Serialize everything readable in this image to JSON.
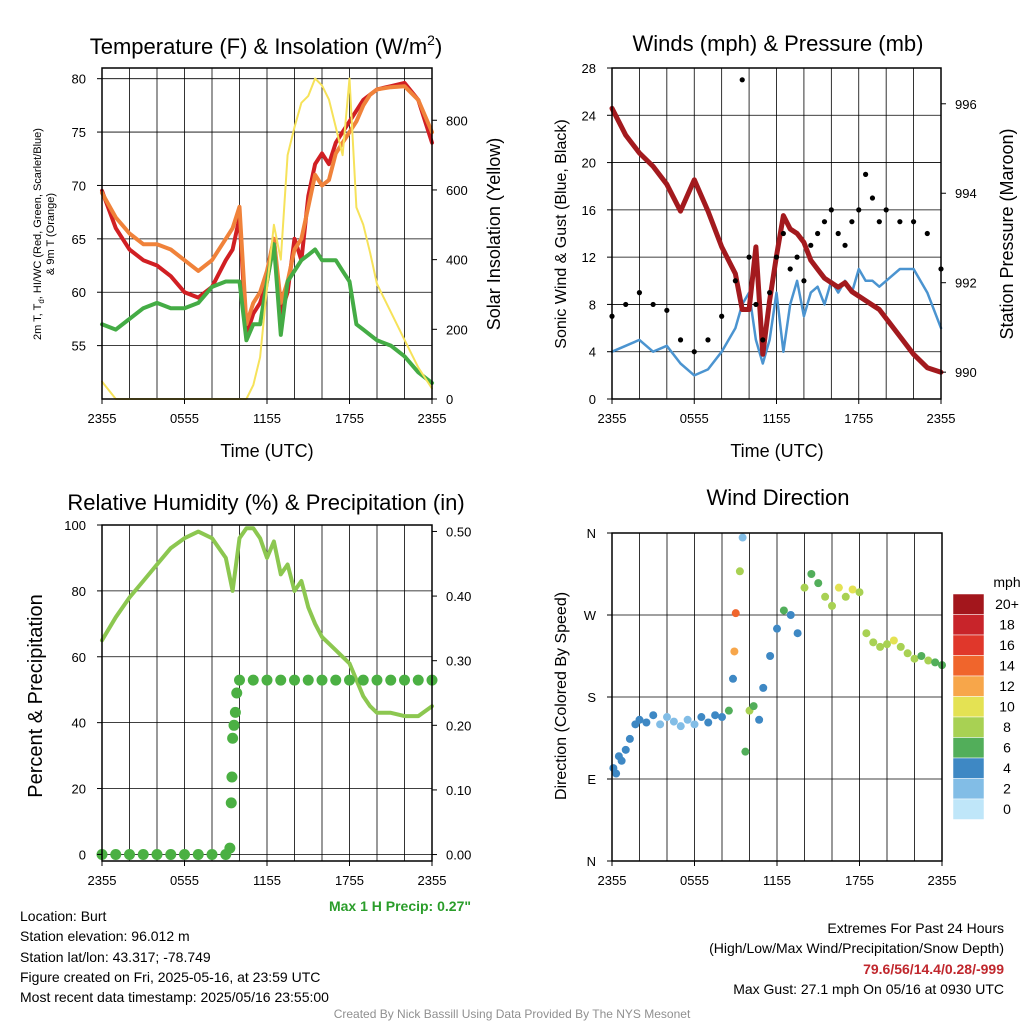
{
  "panels": {
    "temperature": {
      "title": "Temperature (F) & Insolation (W/m",
      "title_sup": "2",
      "title_close": ")",
      "ylabel_line1": "2m T, T",
      "ylabel_sub": "d",
      "ylabel_line1_rest": ", HI/WC (Red, Green, Scarlet/Blue)",
      "ylabel_line2": "& 9m T (Orange)",
      "y2label": "Solar Insolation (Yellow)",
      "xlabel": "Time (UTC)"
    },
    "winds": {
      "title": "Winds (mph) & Pressure (mb)",
      "ylabel": "Sonic Wind & Gust (Blue, Black)",
      "y2label": "Station Pressure (Maroon)",
      "xlabel": "Time (UTC)"
    },
    "humidity": {
      "title": "Relative Humidity (%) & Precipitation (in)",
      "ylabel": "Percent & Precipitation",
      "max_precip": "Max 1 H Precip: 0.27\""
    },
    "direction": {
      "title": "Wind Direction",
      "ylabel": "Direction (Colored By Speed)",
      "colorbar_unit": "mph",
      "colorbar_labels": [
        "20+",
        "18",
        "16",
        "14",
        "12",
        "10",
        "8",
        "6",
        "4",
        "2",
        "0"
      ],
      "colorbar_colors": [
        "#a3161c",
        "#c8242a",
        "#e0372b",
        "#f0652c",
        "#f7a64a",
        "#e4e253",
        "#a8d153",
        "#52ae5a",
        "#3e88c4",
        "#82bde6",
        "#bfe6f9"
      ]
    }
  },
  "colors": {
    "temp_red": "#d11f23",
    "dew_green": "#44ac45",
    "temp9m_orange": "#f0823a",
    "solar_yellow": "#f6e25a",
    "wind_blue": "#4b94d0",
    "gust_black": "#000000",
    "pressure_maroon": "#a31a1e",
    "rh_lightgreen": "#8cc750",
    "precip_green": "#4bb043"
  },
  "info_left": [
    "Location: Burt",
    "Station elevation: 96.012 m",
    "Station lat/lon: 43.317; -78.749",
    "Figure created on Fri, 2025-05-16, at 23:59 UTC",
    "Most recent data timestamp: 2025/05/16 23:55:00"
  ],
  "info_right": {
    "line1": "Extremes For Past 24 Hours",
    "line2": "(High/Low/Max Wind/Precipitation/Snow Depth)",
    "values": "79.6/56/14.4/0.28/-999",
    "max_gust": "Max Gust: 27.1 mph On 05/16 at 0930 UTC"
  },
  "credit": "Created By Nick Bassill Using Data Provided By The NYS Mesonet",
  "chart_data": [
    {
      "type": "line",
      "title": "Temperature (F) & Insolation (W/m2)",
      "xlabel": "Time (UTC)",
      "ylabel": "2m T, Td, HI/WC (Red, Green, Scarlet/Blue) & 9m T (Orange)",
      "y2label": "Solar Insolation (Yellow)",
      "x_ticks": [
        "2355",
        "0555",
        "1155",
        "1755",
        "2355"
      ],
      "ylim": [
        50,
        81
      ],
      "y_ticks": [
        55,
        60,
        65,
        70,
        75,
        80
      ],
      "y2lim": [
        0,
        950
      ],
      "y2_ticks": [
        0,
        200,
        400,
        600,
        800
      ],
      "x_hours": [
        0,
        1,
        2,
        3,
        4,
        5,
        6,
        7,
        8,
        9,
        9.5,
        10,
        10.5,
        11,
        11.5,
        12,
        12.5,
        13,
        13.5,
        14,
        14.5,
        15,
        15.5,
        16,
        16.5,
        17,
        17.5,
        18,
        18.5,
        19,
        19.5,
        20,
        21,
        22,
        23,
        24
      ],
      "series": [
        {
          "name": "2m T",
          "color_key": "temp_red",
          "axis": "left",
          "values": [
            69.5,
            66,
            64,
            63,
            62.5,
            61.5,
            60,
            59.5,
            60.5,
            63,
            64,
            67,
            56,
            58,
            59,
            61,
            65,
            58,
            60,
            65,
            63,
            69,
            72,
            73,
            72,
            74,
            75,
            76,
            77,
            78,
            78.5,
            79,
            79.3,
            79.6,
            78,
            74
          ]
        },
        {
          "name": "9m T",
          "color_key": "temp9m_orange",
          "axis": "left",
          "values": [
            69.3,
            67,
            65.5,
            64.5,
            64.5,
            64,
            63,
            62,
            63,
            65,
            66,
            68,
            57,
            59,
            60,
            62,
            65,
            59,
            61,
            64,
            65,
            68,
            71,
            70,
            70.5,
            73,
            74,
            75,
            76,
            77.5,
            78.5,
            79,
            79.2,
            79.3,
            78,
            75
          ]
        },
        {
          "name": "2m Td",
          "color_key": "dew_green",
          "axis": "left",
          "values": [
            57,
            56.5,
            57.5,
            58.5,
            59,
            58.5,
            58.5,
            59,
            60.5,
            61,
            61,
            61,
            55.5,
            57,
            57,
            61,
            64.5,
            56,
            61,
            62,
            63,
            63.5,
            64,
            63,
            63,
            63,
            62,
            61,
            57,
            56.5,
            56,
            55.5,
            55,
            54,
            52.5,
            51.5
          ]
        },
        {
          "name": "Solar Insolation",
          "color_key": "solar_yellow",
          "axis": "right",
          "values": [
            50,
            0,
            0,
            0,
            0,
            0,
            0,
            0,
            0,
            0,
            0,
            0,
            0,
            40,
            120,
            320,
            500,
            400,
            700,
            780,
            850,
            870,
            920,
            900,
            860,
            780,
            700,
            920,
            550,
            500,
            420,
            330,
            250,
            170,
            90,
            30
          ]
        }
      ]
    },
    {
      "type": "line",
      "title": "Winds (mph) & Pressure (mb)",
      "xlabel": "Time (UTC)",
      "ylabel": "Sonic Wind & Gust (Blue, Black)",
      "y2label": "Station Pressure (Maroon)",
      "x_ticks": [
        "2355",
        "0555",
        "1155",
        "1755",
        "2355"
      ],
      "ylim": [
        0,
        28
      ],
      "y_ticks": [
        0,
        4,
        8,
        12,
        16,
        20,
        24,
        28
      ],
      "y2lim": [
        989.4,
        996.8
      ],
      "y2_ticks": [
        990,
        992,
        994,
        996
      ],
      "x_hours": [
        0,
        1,
        2,
        3,
        4,
        5,
        6,
        7,
        8,
        9,
        9.5,
        10,
        10.5,
        11,
        11.5,
        12,
        12.5,
        13,
        13.5,
        14,
        14.5,
        15,
        15.5,
        16,
        16.5,
        17,
        17.5,
        18,
        18.5,
        19,
        19.5,
        20,
        21,
        22,
        23,
        24
      ],
      "series": [
        {
          "name": "Sonic Wind",
          "color_key": "wind_blue",
          "axis": "left",
          "values": [
            4,
            4.5,
            5,
            4,
            4.5,
            3,
            2,
            2.5,
            4,
            6,
            8,
            9,
            5,
            3,
            5,
            9,
            4,
            8,
            10,
            7,
            9,
            9.5,
            8,
            10,
            9,
            10,
            9,
            11,
            10,
            10,
            9.5,
            10,
            11,
            11,
            9,
            6
          ]
        },
        {
          "name": "Station Pressure",
          "color_key": "pressure_maroon",
          "axis": "right",
          "values": [
            995.9,
            995.3,
            994.9,
            994.6,
            994.2,
            993.6,
            994.3,
            993.6,
            992.8,
            992.2,
            991.4,
            991.4,
            992.8,
            990.4,
            991.6,
            992.6,
            993.5,
            993.2,
            993.1,
            992.9,
            992.5,
            992.3,
            992.1,
            992.0,
            991.9,
            992.0,
            991.8,
            991.7,
            991.6,
            991.5,
            991.4,
            991.2,
            990.8,
            990.4,
            990.1,
            990.0
          ]
        },
        {
          "name": "Gust",
          "color_key": "gust_black",
          "axis": "left",
          "style": "scatter",
          "values": [
            7,
            8,
            9,
            8,
            7.5,
            5,
            4,
            5,
            7,
            10,
            27,
            12,
            8,
            5,
            9,
            12,
            14,
            11,
            12,
            10,
            13,
            14,
            15,
            16,
            14,
            13,
            15,
            16,
            19,
            17,
            15,
            16,
            15,
            15,
            14,
            11
          ]
        }
      ]
    },
    {
      "type": "line",
      "title": "Relative Humidity (%) & Precipitation (in)",
      "ylabel": "Percent & Precipitation",
      "x_ticks": [
        "2355",
        "0555",
        "1155",
        "1755",
        "2355"
      ],
      "ylim": [
        -2,
        100
      ],
      "y_ticks": [
        0,
        20,
        40,
        60,
        80,
        100
      ],
      "y2lim": [
        -0.01,
        0.51
      ],
      "y2_ticks": [
        "0.00",
        "0.10",
        "0.20",
        "0.30",
        "0.40",
        "0.50"
      ],
      "x_hours": [
        0,
        1,
        2,
        3,
        4,
        5,
        6,
        7,
        8,
        9,
        9.5,
        10,
        10.5,
        11,
        11.5,
        12,
        12.5,
        13,
        13.5,
        14,
        14.5,
        15,
        15.5,
        16,
        16.5,
        17,
        17.5,
        18,
        18.5,
        19,
        19.5,
        20,
        21,
        22,
        23,
        24
      ],
      "series": [
        {
          "name": "Relative Humidity",
          "color_key": "rh_lightgreen",
          "axis": "left",
          "values": [
            65,
            72,
            78,
            83,
            88,
            93,
            96,
            98,
            96,
            90,
            80,
            96,
            99,
            99,
            96,
            90,
            95,
            85,
            88,
            80,
            83,
            75,
            70,
            66,
            64,
            62,
            60,
            58,
            53,
            48,
            45,
            43,
            43,
            42,
            42,
            45
          ]
        },
        {
          "name": "Precipitation",
          "color_key": "precip_green",
          "axis": "right",
          "style": "markers",
          "x_hours": [
            0,
            1,
            2,
            3,
            4,
            5,
            6,
            7,
            8,
            9,
            9.3,
            9.4,
            9.45,
            9.5,
            9.6,
            9.7,
            9.8,
            10,
            11,
            12,
            13,
            14,
            15,
            16,
            17,
            18,
            19,
            20,
            21,
            22,
            23,
            24
          ],
          "values": [
            0,
            0,
            0,
            0,
            0,
            0,
            0,
            0,
            0,
            0,
            0.01,
            0.08,
            0.12,
            0.18,
            0.2,
            0.22,
            0.25,
            0.27,
            0.27,
            0.27,
            0.27,
            0.27,
            0.27,
            0.27,
            0.27,
            0.27,
            0.27,
            0.27,
            0.27,
            0.27,
            0.27,
            0.27
          ]
        }
      ]
    },
    {
      "type": "scatter",
      "title": "Wind Direction",
      "ylabel": "Direction (Colored By Speed)",
      "x_ticks": [
        "2355",
        "0555",
        "1155",
        "1755",
        "2355"
      ],
      "y_ticks": [
        "N",
        "E",
        "S",
        "W",
        "N"
      ],
      "ylim": [
        0,
        360
      ],
      "colorbar": {
        "label": "mph",
        "range": [
          0,
          20
        ]
      },
      "points": [
        {
          "x": 0.1,
          "y": 102,
          "speed": 4
        },
        {
          "x": 0.3,
          "y": 96,
          "speed": 4
        },
        {
          "x": 0.5,
          "y": 115,
          "speed": 4
        },
        {
          "x": 0.7,
          "y": 110,
          "speed": 5
        },
        {
          "x": 1.0,
          "y": 122,
          "speed": 4
        },
        {
          "x": 1.3,
          "y": 134,
          "speed": 4
        },
        {
          "x": 1.7,
          "y": 150,
          "speed": 5
        },
        {
          "x": 2.0,
          "y": 155,
          "speed": 5
        },
        {
          "x": 2.5,
          "y": 152,
          "speed": 4
        },
        {
          "x": 3.0,
          "y": 160,
          "speed": 4
        },
        {
          "x": 3.5,
          "y": 150,
          "speed": 3
        },
        {
          "x": 4.0,
          "y": 158,
          "speed": 3
        },
        {
          "x": 4.5,
          "y": 153,
          "speed": 2
        },
        {
          "x": 5.0,
          "y": 148,
          "speed": 2
        },
        {
          "x": 5.5,
          "y": 155,
          "speed": 2
        },
        {
          "x": 6.0,
          "y": 150,
          "speed": 3
        },
        {
          "x": 6.5,
          "y": 158,
          "speed": 4
        },
        {
          "x": 7.0,
          "y": 152,
          "speed": 4
        },
        {
          "x": 7.5,
          "y": 160,
          "speed": 5
        },
        {
          "x": 8.0,
          "y": 158,
          "speed": 5
        },
        {
          "x": 8.5,
          "y": 165,
          "speed": 6
        },
        {
          "x": 8.8,
          "y": 200,
          "speed": 5
        },
        {
          "x": 8.9,
          "y": 230,
          "speed": 12
        },
        {
          "x": 9.0,
          "y": 272,
          "speed": 14
        },
        {
          "x": 9.3,
          "y": 318,
          "speed": 8
        },
        {
          "x": 9.5,
          "y": 355,
          "speed": 3
        },
        {
          "x": 9.7,
          "y": 120,
          "speed": 6
        },
        {
          "x": 10.0,
          "y": 165,
          "speed": 8
        },
        {
          "x": 10.3,
          "y": 170,
          "speed": 6
        },
        {
          "x": 10.7,
          "y": 155,
          "speed": 4
        },
        {
          "x": 11.0,
          "y": 190,
          "speed": 4
        },
        {
          "x": 11.5,
          "y": 225,
          "speed": 5
        },
        {
          "x": 12.0,
          "y": 255,
          "speed": 5
        },
        {
          "x": 12.5,
          "y": 275,
          "speed": 6
        },
        {
          "x": 13.0,
          "y": 270,
          "speed": 4
        },
        {
          "x": 13.5,
          "y": 250,
          "speed": 5
        },
        {
          "x": 14.0,
          "y": 300,
          "speed": 8
        },
        {
          "x": 14.5,
          "y": 315,
          "speed": 7
        },
        {
          "x": 15.0,
          "y": 305,
          "speed": 6
        },
        {
          "x": 15.5,
          "y": 290,
          "speed": 9
        },
        {
          "x": 16.0,
          "y": 280,
          "speed": 8
        },
        {
          "x": 16.5,
          "y": 300,
          "speed": 10
        },
        {
          "x": 17.0,
          "y": 290,
          "speed": 9
        },
        {
          "x": 17.5,
          "y": 298,
          "speed": 10
        },
        {
          "x": 18.0,
          "y": 295,
          "speed": 9
        },
        {
          "x": 18.5,
          "y": 250,
          "speed": 8
        },
        {
          "x": 19.0,
          "y": 240,
          "speed": 9
        },
        {
          "x": 19.5,
          "y": 235,
          "speed": 8
        },
        {
          "x": 20.0,
          "y": 238,
          "speed": 9
        },
        {
          "x": 20.5,
          "y": 242,
          "speed": 10
        },
        {
          "x": 21.0,
          "y": 235,
          "speed": 9
        },
        {
          "x": 21.5,
          "y": 228,
          "speed": 8
        },
        {
          "x": 22.0,
          "y": 222,
          "speed": 8
        },
        {
          "x": 22.5,
          "y": 225,
          "speed": 7
        },
        {
          "x": 23.0,
          "y": 220,
          "speed": 8
        },
        {
          "x": 23.5,
          "y": 218,
          "speed": 7
        },
        {
          "x": 24.0,
          "y": 215,
          "speed": 6
        }
      ]
    }
  ]
}
